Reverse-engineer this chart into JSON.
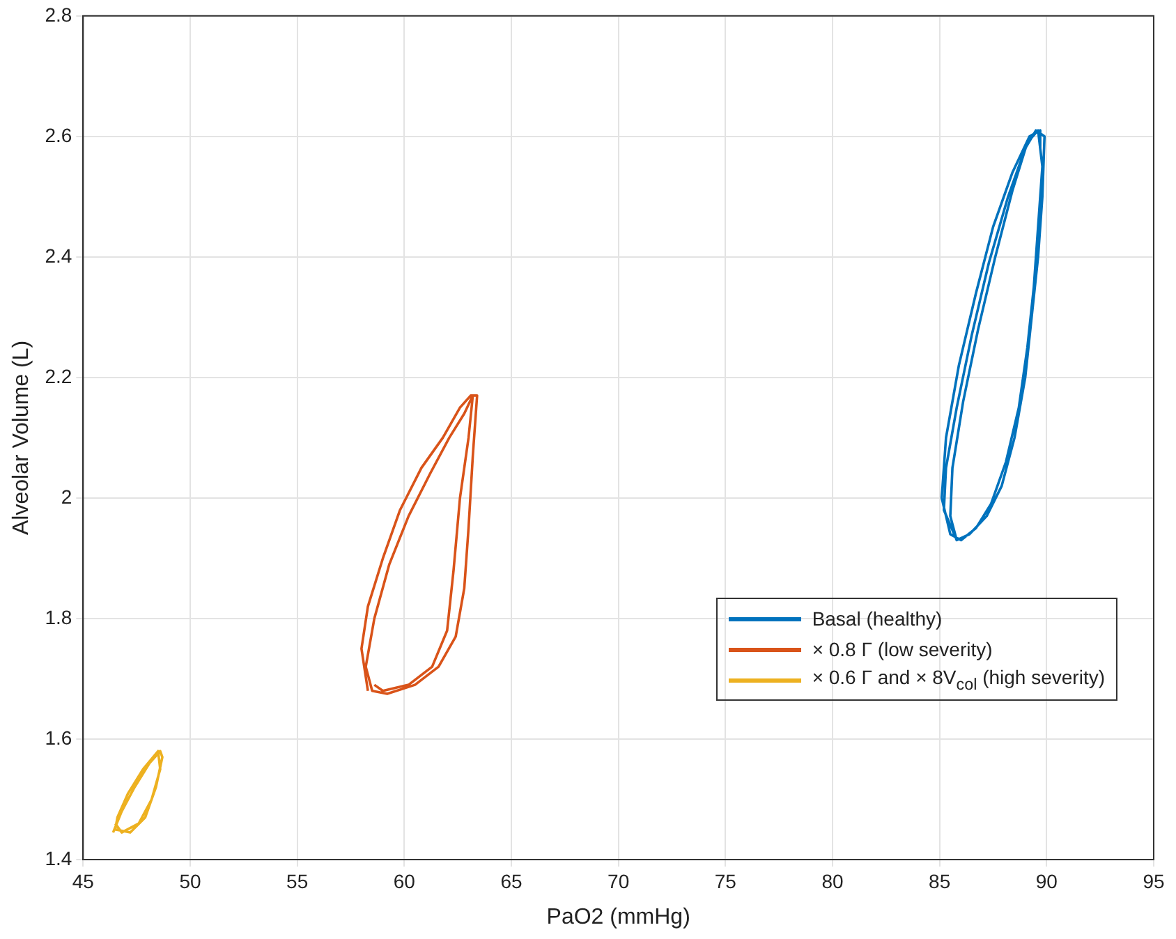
{
  "chart_data": {
    "type": "line",
    "xlabel": "PaO2 (mmHg)",
    "ylabel": "Alveolar Volume (L)",
    "xlim": [
      45,
      95
    ],
    "xticks": [
      45,
      50,
      55,
      60,
      65,
      70,
      75,
      80,
      85,
      90,
      95
    ],
    "ylim": [
      1.4,
      2.8
    ],
    "yticks": [
      1.4,
      1.6,
      1.8,
      2,
      2.2,
      2.4,
      2.6,
      2.8
    ],
    "grid": true,
    "legend": "right",
    "marker": "none",
    "line_style": "solid",
    "series": [
      {
        "name": "Basal (healthy)",
        "color": "#0072bd",
        "x": [
          85.8,
          85.2,
          85.3,
          85.8,
          86.5,
          87.3,
          88.2,
          89.0,
          89.5,
          89.9,
          89.8,
          89.6,
          89.3,
          89.0,
          88.5,
          87.9,
          87.2,
          86.4,
          85.8,
          85.5,
          85.6,
          86.1,
          86.8,
          87.6,
          88.4,
          89.1,
          89.6,
          89.8,
          89.6,
          89.4,
          89.1,
          88.7,
          88.1,
          87.4,
          86.7,
          86.0,
          85.5,
          85.1,
          85.3,
          85.9,
          86.7,
          87.5,
          88.4,
          89.2,
          89.7,
          89.7
        ],
        "values": [
          1.93,
          1.98,
          2.05,
          2.15,
          2.27,
          2.39,
          2.5,
          2.58,
          2.61,
          2.6,
          2.5,
          2.4,
          2.3,
          2.2,
          2.1,
          2.02,
          1.97,
          1.94,
          1.93,
          1.97,
          2.05,
          2.16,
          2.28,
          2.4,
          2.51,
          2.59,
          2.61,
          2.55,
          2.45,
          2.35,
          2.25,
          2.15,
          2.06,
          1.99,
          1.95,
          1.93,
          1.94,
          2.0,
          2.1,
          2.22,
          2.34,
          2.45,
          2.54,
          2.6,
          2.61,
          2.58
        ]
      },
      {
        "name": "× 0.8 Γ (low severity)",
        "color": "#d95319",
        "x": [
          58.3,
          58.0,
          58.3,
          59.0,
          59.8,
          60.8,
          61.8,
          62.6,
          63.1,
          63.4,
          63.2,
          63.0,
          62.8,
          62.4,
          61.6,
          60.5,
          59.2,
          58.5,
          58.2,
          58.6,
          59.3,
          60.2,
          61.2,
          62.1,
          62.8,
          63.2,
          63.0,
          62.6,
          62.3,
          62.0,
          61.3,
          60.2,
          59.0,
          58.6
        ],
        "values": [
          1.68,
          1.75,
          1.82,
          1.9,
          1.98,
          2.05,
          2.1,
          2.15,
          2.17,
          2.17,
          2.07,
          1.95,
          1.85,
          1.77,
          1.72,
          1.69,
          1.675,
          1.68,
          1.72,
          1.8,
          1.89,
          1.97,
          2.04,
          2.1,
          2.14,
          2.17,
          2.1,
          2.0,
          1.88,
          1.78,
          1.72,
          1.69,
          1.68,
          1.69
        ]
      },
      {
        "name": "× 0.6 Γ and × 8V$_{col}$ (high severity)",
        "color": "#edb120",
        "x": [
          46.4,
          46.8,
          47.4,
          48.1,
          48.6,
          48.7,
          48.4,
          47.9,
          47.2,
          46.5,
          46.6,
          47.1,
          47.8,
          48.5,
          48.6,
          48.2,
          47.6,
          46.8,
          46.5
        ],
        "values": [
          1.445,
          1.48,
          1.52,
          1.56,
          1.58,
          1.57,
          1.52,
          1.47,
          1.445,
          1.45,
          1.47,
          1.51,
          1.55,
          1.58,
          1.55,
          1.5,
          1.46,
          1.445,
          1.46
        ]
      }
    ]
  }
}
